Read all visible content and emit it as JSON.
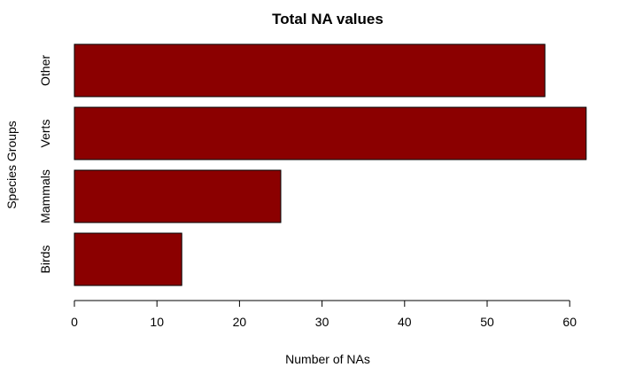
{
  "chart_data": {
    "type": "bar",
    "orientation": "horizontal",
    "title": "Total NA values",
    "xlabel": "Number of NAs",
    "ylabel": "Species Groups",
    "categories": [
      "Birds",
      "Mammals",
      "Verts",
      "Other"
    ],
    "values": [
      13,
      25,
      62,
      57
    ],
    "xlim": [
      0,
      62
    ],
    "xticks": [
      0,
      10,
      20,
      30,
      40,
      50,
      60
    ],
    "bar_color": "#8b0000",
    "grid": false,
    "legend": "none"
  }
}
